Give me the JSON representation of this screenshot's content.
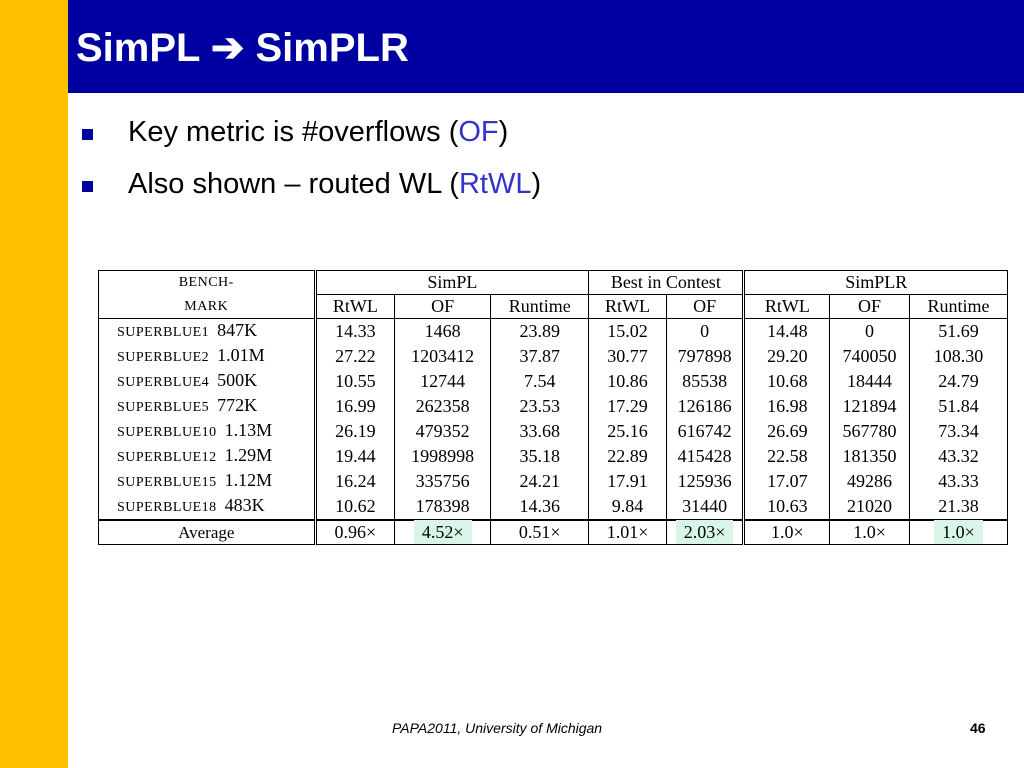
{
  "slide": {
    "title": "SimPL ➔ SimPLR",
    "bullets": [
      {
        "prefix": "Key metric is #overflows (",
        "highlight": "OF",
        "suffix": ")"
      },
      {
        "prefix": "Also shown – routed WL (",
        "highlight": "RtWL",
        "suffix": ")"
      }
    ],
    "colors": {
      "title_bar": "#0000a0",
      "left_bar": "#ffc000",
      "highlight_text": "#3333cc",
      "highlight_cell": "#d9f5e8"
    }
  },
  "table": {
    "bench_header_line1": "BENCH-",
    "bench_header_line2": "MARK",
    "groups": [
      "SimPL",
      "Best in Contest",
      "SimPLR"
    ],
    "subheaders": [
      "RtWL",
      "OF",
      "Runtime",
      "RtWL",
      "OF",
      "RtWL",
      "OF",
      "Runtime"
    ],
    "rows": [
      {
        "bench": "SUPERBLUE1",
        "size": "847K",
        "values": [
          "14.33",
          "1468",
          "23.89",
          "15.02",
          "0",
          "14.48",
          "0",
          "51.69"
        ]
      },
      {
        "bench": "SUPERBLUE2",
        "size": "1.01M",
        "values": [
          "27.22",
          "1203412",
          "37.87",
          "30.77",
          "797898",
          "29.20",
          "740050",
          "108.30"
        ]
      },
      {
        "bench": "SUPERBLUE4",
        "size": "500K",
        "values": [
          "10.55",
          "12744",
          "7.54",
          "10.86",
          "85538",
          "10.68",
          "18444",
          "24.79"
        ]
      },
      {
        "bench": "SUPERBLUE5",
        "size": "772K",
        "values": [
          "16.99",
          "262358",
          "23.53",
          "17.29",
          "126186",
          "16.98",
          "121894",
          "51.84"
        ]
      },
      {
        "bench": "SUPERBLUE10",
        "size": "1.13M",
        "values": [
          "26.19",
          "479352",
          "33.68",
          "25.16",
          "616742",
          "26.69",
          "567780",
          "73.34"
        ]
      },
      {
        "bench": "SUPERBLUE12",
        "size": "1.29M",
        "values": [
          "19.44",
          "1998998",
          "35.18",
          "22.89",
          "415428",
          "22.58",
          "181350",
          "43.32"
        ]
      },
      {
        "bench": "SUPERBLUE15",
        "size": "1.12M",
        "values": [
          "16.24",
          "335756",
          "24.21",
          "17.91",
          "125936",
          "17.07",
          "49286",
          "43.33"
        ]
      },
      {
        "bench": "SUPERBLUE18",
        "size": "483K",
        "values": [
          "10.62",
          "178398",
          "14.36",
          "9.84",
          "31440",
          "10.63",
          "21020",
          "21.38"
        ]
      }
    ],
    "average": {
      "label": "Average",
      "values": [
        "0.96×",
        "4.52×",
        "0.51×",
        "1.01×",
        "2.03×",
        "1.0×",
        "1.0×",
        "1.0×"
      ],
      "highlighted": [
        false,
        true,
        false,
        false,
        true,
        false,
        false,
        true
      ]
    }
  },
  "footer": {
    "text": "PAPA2011, University of Michigan",
    "page": "46"
  }
}
